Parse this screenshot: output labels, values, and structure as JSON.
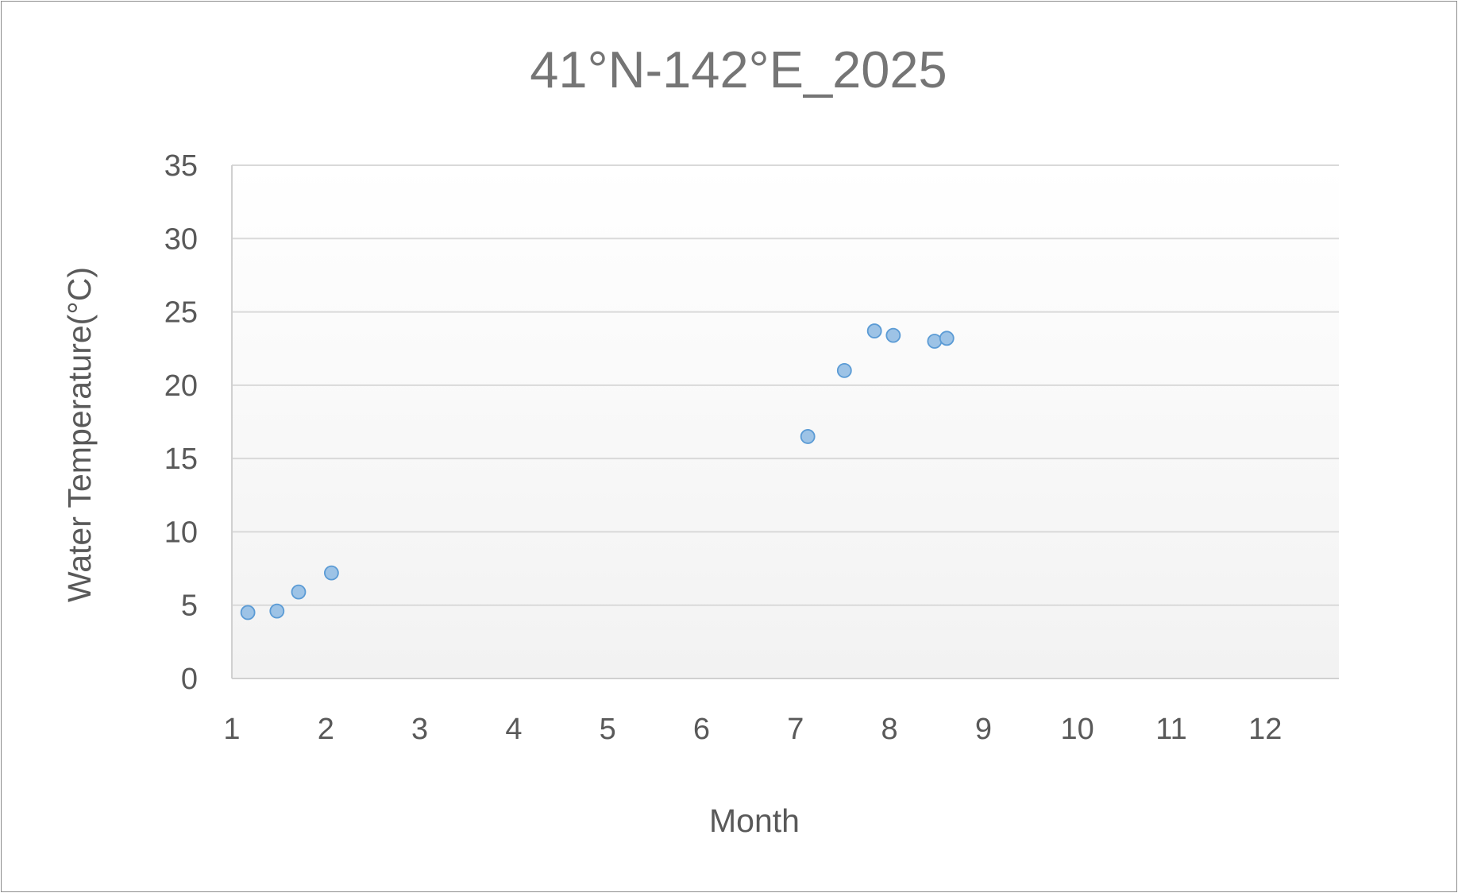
{
  "chart_data": {
    "type": "scatter",
    "title": "41°N-142°E_2025",
    "xlabel": "Month",
    "ylabel": "Water Temperature(°C)",
    "xlim": [
      1,
      12.8
    ],
    "ylim": [
      0,
      35
    ],
    "x_ticks": [
      "1",
      "2",
      "3",
      "4",
      "5",
      "6",
      "7",
      "8",
      "9",
      "10",
      "11",
      "12"
    ],
    "y_ticks": [
      "0",
      "5",
      "10",
      "15",
      "20",
      "25",
      "30",
      "35"
    ],
    "grid": "horizontal",
    "legend": "none",
    "series": [
      {
        "color": "#9dc3e6",
        "edge_color": "#5b9bd5",
        "points": [
          {
            "x": 1.17,
            "y": 4.5
          },
          {
            "x": 1.48,
            "y": 4.6
          },
          {
            "x": 1.71,
            "y": 5.9
          },
          {
            "x": 2.06,
            "y": 7.2
          },
          {
            "x": 7.13,
            "y": 16.5
          },
          {
            "x": 7.52,
            "y": 21.0
          },
          {
            "x": 7.84,
            "y": 23.7
          },
          {
            "x": 8.04,
            "y": 23.4
          },
          {
            "x": 8.48,
            "y": 23.0
          },
          {
            "x": 8.61,
            "y": 23.2
          }
        ]
      }
    ]
  }
}
